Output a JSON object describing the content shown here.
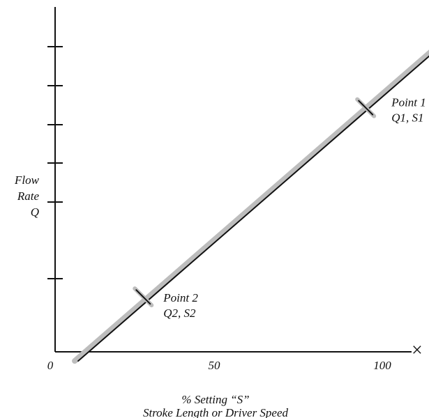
{
  "chart_data": {
    "type": "line",
    "xlabel": "% Setting “S”",
    "xlabel_sub": "Stroke Length or Driver Speed",
    "ylabel": "Flow Rate Q",
    "ylabel_lines": [
      "Flow",
      "Rate",
      "Q"
    ],
    "x_tick_labels": [
      "0",
      "50",
      "100"
    ],
    "x_ticks": [
      0,
      50,
      100
    ],
    "xlim": [
      0,
      120
    ],
    "ylim": [
      0,
      100
    ],
    "x_axis_end_marker": "×",
    "series": [
      {
        "x": [
          8,
          117
        ],
        "y": [
          -3,
          100
        ],
        "style": "shadowed-black-line"
      }
    ],
    "annotations": [
      {
        "name": "point-1",
        "x": 95,
        "y": 80,
        "label_lines": [
          "Point 1",
          "Q1, S1"
        ]
      },
      {
        "name": "point-2",
        "x": 28,
        "y": 18,
        "label_lines": [
          "Point 2",
          "Q2, S2"
        ]
      }
    ],
    "grid": false,
    "legend": "none"
  }
}
